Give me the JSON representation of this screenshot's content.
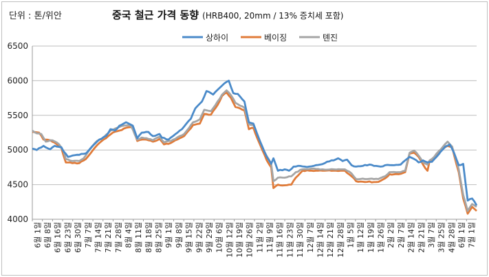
{
  "chart_data": {
    "type": "line",
    "title": "중국 철근 가격 동향",
    "subtitle": "(HRB400, 20mm / 13% 증치세 포함)",
    "unit_label": "단위 : 톤/위안",
    "ylim": [
      4000,
      6500
    ],
    "yticks": [
      4000,
      4500,
      5000,
      5500,
      6000,
      6500
    ],
    "x_tick_labels": [
      "6월 1일",
      "6월 8일",
      "6월 16일",
      "6월 23일",
      "6월 30일",
      "7월 7일",
      "7월 14일",
      "7월 21일",
      "7월 28일",
      "8월 4일",
      "8월 11일",
      "8월 18일",
      "8월 25일",
      "9월 1일",
      "9월 8일",
      "9월 15일",
      "9월 22일",
      "9월 29일",
      "10월 6일",
      "10월 12일",
      "10월 19일",
      "10월 26일",
      "11월 2일",
      "11월 9일",
      "11월 16일",
      "11월 23일",
      "11월 30일",
      "12월 7일",
      "12월 14일",
      "12월 21일",
      "12월 28일",
      "1월 5일",
      "1월 12일",
      "1월 19일",
      "1월 26일",
      "2월 2일",
      "2월 7일",
      "2월 14일",
      "2월 21일",
      "3월 7일",
      "3월 25일",
      "4월 28일",
      "6월 1일",
      "7월 1일"
    ],
    "series": [
      {
        "name": "상하이",
        "color": "#4a8ac9",
        "keypoints": [
          [
            0,
            5020
          ],
          [
            2,
            5000
          ],
          [
            5,
            5060
          ],
          [
            8,
            5010
          ],
          [
            10,
            5060
          ],
          [
            13,
            5040
          ],
          [
            14,
            4980
          ],
          [
            16,
            4900
          ],
          [
            18,
            4920
          ],
          [
            21,
            4930
          ],
          [
            24,
            4950
          ],
          [
            27,
            5060
          ],
          [
            30,
            5150
          ],
          [
            33,
            5200
          ],
          [
            35,
            5300
          ],
          [
            37,
            5280
          ],
          [
            39,
            5350
          ],
          [
            42,
            5400
          ],
          [
            45,
            5350
          ],
          [
            47,
            5170
          ],
          [
            49,
            5250
          ],
          [
            52,
            5260
          ],
          [
            54,
            5200
          ],
          [
            57,
            5230
          ],
          [
            58,
            5180
          ],
          [
            61,
            5150
          ],
          [
            63,
            5200
          ],
          [
            65,
            5250
          ],
          [
            67,
            5300
          ],
          [
            69,
            5380
          ],
          [
            71,
            5450
          ],
          [
            73,
            5600
          ],
          [
            76,
            5700
          ],
          [
            78,
            5850
          ],
          [
            81,
            5800
          ],
          [
            84,
            5900
          ],
          [
            86,
            5960
          ],
          [
            88,
            6000
          ],
          [
            90,
            5820
          ],
          [
            92,
            5810
          ],
          [
            95,
            5700
          ],
          [
            97,
            5400
          ],
          [
            99,
            5380
          ],
          [
            101,
            5200
          ],
          [
            103,
            5050
          ],
          [
            105,
            4900
          ],
          [
            107,
            4800
          ],
          [
            108,
            4880
          ],
          [
            110,
            4700
          ],
          [
            113,
            4720
          ],
          [
            115,
            4700
          ],
          [
            117,
            4760
          ],
          [
            120,
            4770
          ],
          [
            122,
            4760
          ],
          [
            124,
            4760
          ],
          [
            126,
            4770
          ],
          [
            129,
            4790
          ],
          [
            132,
            4830
          ],
          [
            135,
            4850
          ],
          [
            137,
            4880
          ],
          [
            139,
            4840
          ],
          [
            141,
            4860
          ],
          [
            143,
            4780
          ],
          [
            145,
            4760
          ],
          [
            148,
            4770
          ],
          [
            151,
            4790
          ],
          [
            153,
            4770
          ],
          [
            156,
            4760
          ],
          [
            158,
            4780
          ],
          [
            162,
            4780
          ],
          [
            165,
            4790
          ],
          [
            167,
            4850
          ],
          [
            169,
            4900
          ],
          [
            171,
            4870
          ],
          [
            173,
            4820
          ],
          [
            175,
            4850
          ],
          [
            177,
            4820
          ],
          [
            179,
            4830
          ],
          [
            181,
            4900
          ],
          [
            183,
            4980
          ],
          [
            185,
            5050
          ],
          [
            187,
            5080
          ],
          [
            189,
            4950
          ],
          [
            191,
            4780
          ],
          [
            193,
            4800
          ],
          [
            195,
            4270
          ],
          [
            197,
            4300
          ],
          [
            199,
            4200
          ]
        ]
      },
      {
        "name": "베이징",
        "color": "#e07b39",
        "keypoints": [
          [
            0,
            5260
          ],
          [
            3,
            5250
          ],
          [
            5,
            5150
          ],
          [
            8,
            5140
          ],
          [
            11,
            5080
          ],
          [
            13,
            5030
          ],
          [
            14,
            4920
          ],
          [
            15,
            4820
          ],
          [
            18,
            4810
          ],
          [
            21,
            4810
          ],
          [
            24,
            4870
          ],
          [
            27,
            4990
          ],
          [
            30,
            5100
          ],
          [
            33,
            5170
          ],
          [
            36,
            5250
          ],
          [
            39,
            5280
          ],
          [
            42,
            5320
          ],
          [
            45,
            5330
          ],
          [
            47,
            5130
          ],
          [
            49,
            5150
          ],
          [
            52,
            5140
          ],
          [
            54,
            5120
          ],
          [
            57,
            5160
          ],
          [
            59,
            5080
          ],
          [
            62,
            5100
          ],
          [
            64,
            5140
          ],
          [
            66,
            5170
          ],
          [
            68,
            5200
          ],
          [
            70,
            5280
          ],
          [
            72,
            5360
          ],
          [
            75,
            5380
          ],
          [
            77,
            5520
          ],
          [
            80,
            5510
          ],
          [
            83,
            5650
          ],
          [
            85,
            5780
          ],
          [
            87,
            5830
          ],
          [
            89,
            5750
          ],
          [
            91,
            5620
          ],
          [
            93,
            5600
          ],
          [
            95,
            5570
          ],
          [
            97,
            5300
          ],
          [
            99,
            5320
          ],
          [
            101,
            5150
          ],
          [
            103,
            5000
          ],
          [
            105,
            4850
          ],
          [
            107,
            4750
          ],
          [
            108,
            4450
          ],
          [
            110,
            4500
          ],
          [
            113,
            4490
          ],
          [
            116,
            4500
          ],
          [
            118,
            4600
          ],
          [
            121,
            4700
          ],
          [
            125,
            4700
          ],
          [
            130,
            4700
          ],
          [
            135,
            4700
          ],
          [
            140,
            4700
          ],
          [
            143,
            4620
          ],
          [
            145,
            4550
          ],
          [
            150,
            4540
          ],
          [
            155,
            4540
          ],
          [
            158,
            4590
          ],
          [
            160,
            4650
          ],
          [
            164,
            4650
          ],
          [
            167,
            4680
          ],
          [
            169,
            4950
          ],
          [
            171,
            4960
          ],
          [
            173,
            4900
          ],
          [
            175,
            4790
          ],
          [
            177,
            4700
          ],
          [
            178,
            4850
          ],
          [
            180,
            4870
          ],
          [
            182,
            4960
          ],
          [
            184,
            5020
          ],
          [
            186,
            5060
          ],
          [
            188,
            5050
          ],
          [
            190,
            4790
          ],
          [
            191,
            4680
          ],
          [
            193,
            4300
          ],
          [
            195,
            4080
          ],
          [
            197,
            4180
          ],
          [
            199,
            4120
          ]
        ]
      },
      {
        "name": "톈진",
        "color": "#a5a5a5",
        "keypoints": [
          [
            0,
            5280
          ],
          [
            2,
            5240
          ],
          [
            4,
            5230
          ],
          [
            6,
            5120
          ],
          [
            9,
            5140
          ],
          [
            12,
            5080
          ],
          [
            14,
            4980
          ],
          [
            15,
            4870
          ],
          [
            18,
            4840
          ],
          [
            21,
            4840
          ],
          [
            23,
            4880
          ],
          [
            26,
            5020
          ],
          [
            29,
            5130
          ],
          [
            32,
            5180
          ],
          [
            35,
            5280
          ],
          [
            38,
            5320
          ],
          [
            41,
            5350
          ],
          [
            44,
            5360
          ],
          [
            47,
            5150
          ],
          [
            49,
            5180
          ],
          [
            52,
            5160
          ],
          [
            54,
            5140
          ],
          [
            57,
            5190
          ],
          [
            59,
            5110
          ],
          [
            62,
            5130
          ],
          [
            64,
            5160
          ],
          [
            66,
            5200
          ],
          [
            68,
            5230
          ],
          [
            70,
            5310
          ],
          [
            72,
            5400
          ],
          [
            75,
            5440
          ],
          [
            77,
            5580
          ],
          [
            80,
            5560
          ],
          [
            83,
            5700
          ],
          [
            85,
            5800
          ],
          [
            87,
            5860
          ],
          [
            89,
            5790
          ],
          [
            91,
            5680
          ],
          [
            93,
            5640
          ],
          [
            95,
            5610
          ],
          [
            97,
            5370
          ],
          [
            99,
            5360
          ],
          [
            101,
            5210
          ],
          [
            103,
            5040
          ],
          [
            105,
            4910
          ],
          [
            107,
            4800
          ],
          [
            108,
            4550
          ],
          [
            110,
            4600
          ],
          [
            113,
            4600
          ],
          [
            116,
            4620
          ],
          [
            118,
            4680
          ],
          [
            121,
            4720
          ],
          [
            125,
            4730
          ],
          [
            130,
            4720
          ],
          [
            135,
            4720
          ],
          [
            140,
            4720
          ],
          [
            143,
            4660
          ],
          [
            145,
            4580
          ],
          [
            150,
            4580
          ],
          [
            155,
            4580
          ],
          [
            158,
            4620
          ],
          [
            160,
            4680
          ],
          [
            164,
            4680
          ],
          [
            167,
            4700
          ],
          [
            169,
            4960
          ],
          [
            171,
            4990
          ],
          [
            173,
            4920
          ],
          [
            175,
            4820
          ],
          [
            177,
            4790
          ],
          [
            178,
            4850
          ],
          [
            180,
            4900
          ],
          [
            182,
            4980
          ],
          [
            184,
            5050
          ],
          [
            186,
            5120
          ],
          [
            188,
            5050
          ],
          [
            190,
            4840
          ],
          [
            191,
            4720
          ],
          [
            193,
            4350
          ],
          [
            195,
            4120
          ],
          [
            197,
            4220
          ],
          [
            199,
            4180
          ]
        ]
      }
    ]
  }
}
